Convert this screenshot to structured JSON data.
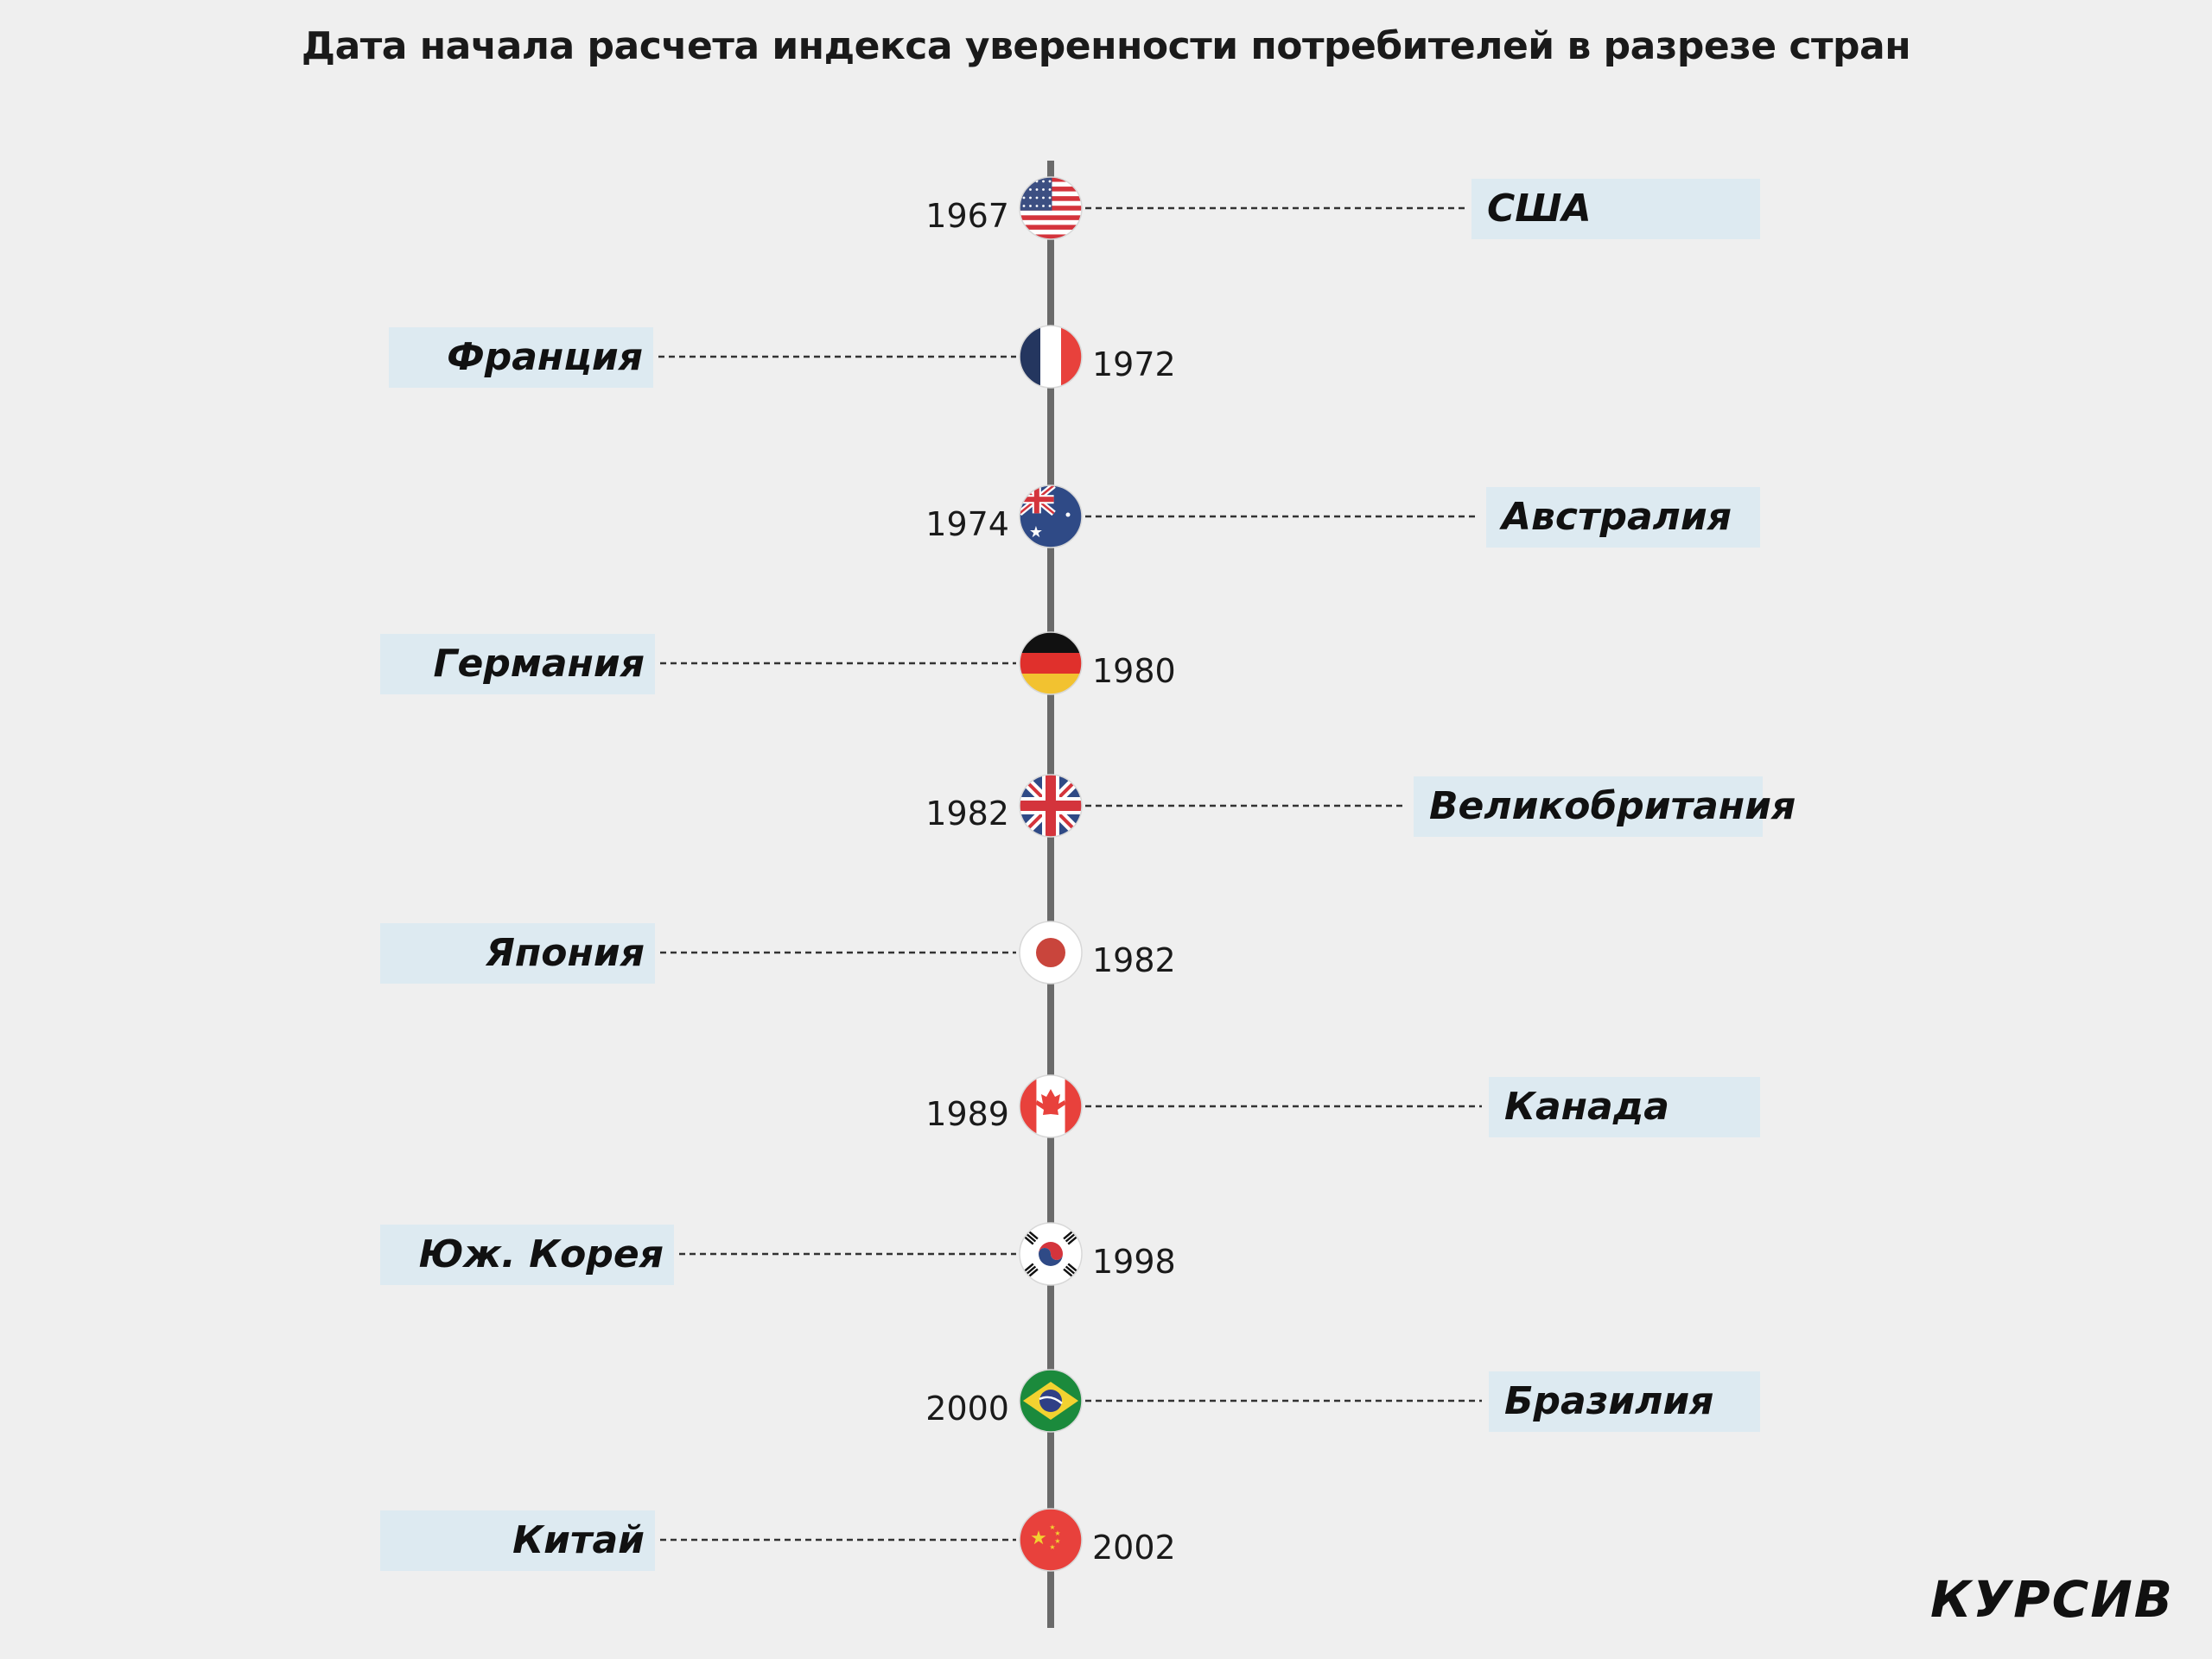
{
  "title": "Дата начала расчета индекса уверенности потребителей в разрезе стран",
  "logo": "КУРСИВ",
  "events": [
    {
      "year": "1967",
      "country": "США",
      "flag": "usa-flag",
      "side": "right"
    },
    {
      "year": "1972",
      "country": "Франция",
      "flag": "france-flag",
      "side": "left"
    },
    {
      "year": "1974",
      "country": "Австралия",
      "flag": "australia-flag",
      "side": "right"
    },
    {
      "year": "1980",
      "country": "Германия",
      "flag": "germany-flag",
      "side": "left"
    },
    {
      "year": "1982",
      "country": "Великобритания",
      "flag": "uk-flag",
      "side": "right"
    },
    {
      "year": "1982",
      "country": "Япония",
      "flag": "japan-flag",
      "side": "left"
    },
    {
      "year": "1989",
      "country": "Канада",
      "flag": "canada-flag",
      "side": "right"
    },
    {
      "year": "1998",
      "country": "Юж. Корея",
      "flag": "south-korea-flag",
      "side": "left"
    },
    {
      "year": "2000",
      "country": "Бразилия",
      "flag": "brazil-flag",
      "side": "right"
    },
    {
      "year": "2002",
      "country": "Китай",
      "flag": "china-flag",
      "side": "left"
    }
  ],
  "colors": {
    "background": "#efefef",
    "timeline": "#6a6a6a",
    "label_box": "#ddeaf1",
    "connector": "#333333"
  }
}
